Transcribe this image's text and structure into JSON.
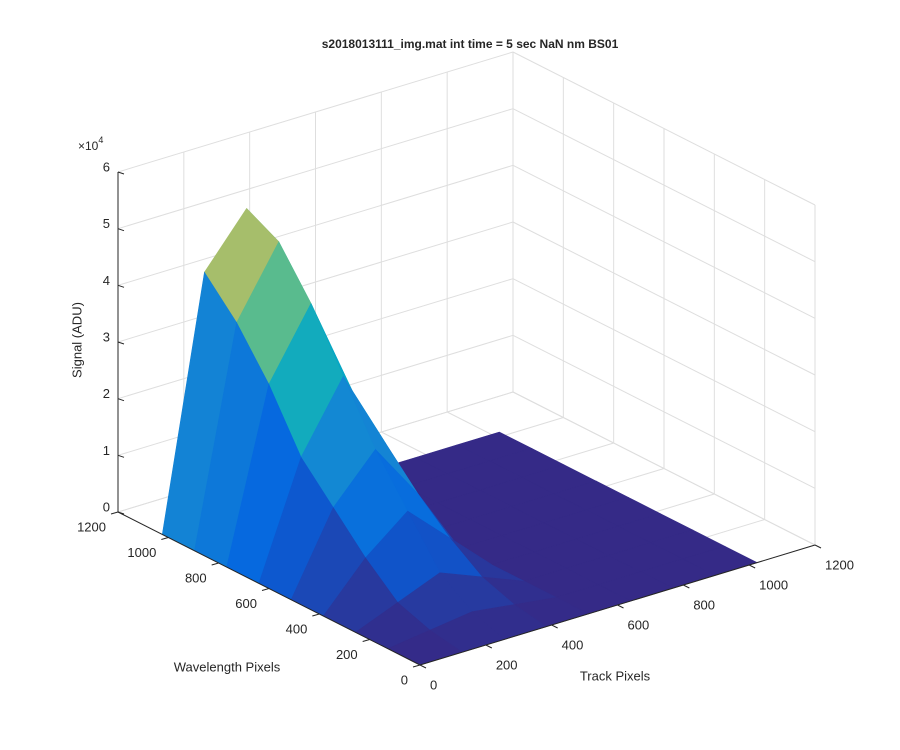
{
  "chart_data": {
    "type": "surface",
    "title": "s2018013111_img.mat int time = 5 sec  NaN nm BS01",
    "xlabel": "Track Pixels",
    "ylabel": "Wavelength Pixels",
    "zlabel": "Signal (ADU)",
    "z_multiplier": {
      "base": "×10",
      "exponent": "4"
    },
    "x": [
      0,
      128,
      256,
      384,
      512,
      640,
      768,
      896,
      1024
    ],
    "y": [
      0,
      128,
      256,
      384,
      512,
      640,
      768,
      896,
      1024
    ],
    "z": [
      [
        0,
        0,
        0,
        0,
        0,
        0,
        0,
        0,
        0
      ],
      [
        0,
        1000,
        2000,
        1000,
        0,
        0,
        0,
        0,
        0
      ],
      [
        0,
        3000,
        6000,
        3000,
        0,
        0,
        0,
        0,
        0
      ],
      [
        0,
        8000,
        14000,
        7000,
        0,
        0,
        0,
        0,
        0
      ],
      [
        0,
        14000,
        22000,
        12000,
        0,
        0,
        0,
        0,
        0
      ],
      [
        0,
        20000,
        32000,
        18000,
        0,
        0,
        0,
        0,
        0
      ],
      [
        0,
        30000,
        42000,
        24000,
        0,
        0,
        0,
        0,
        0
      ],
      [
        0,
        38000,
        50000,
        28000,
        0,
        0,
        0,
        0,
        0
      ],
      [
        0,
        44000,
        53000,
        30000,
        0,
        0,
        0,
        0,
        0
      ]
    ],
    "colormap": "parula",
    "xlim": [
      0,
      1200
    ],
    "xticks": [
      0,
      200,
      400,
      600,
      800,
      1000,
      1200
    ],
    "ylim": [
      0,
      1200
    ],
    "yticks": [
      0,
      200,
      400,
      600,
      800,
      1000,
      1200
    ],
    "zlim": [
      0,
      60000
    ],
    "zticks": [
      {
        "value": 0,
        "label": "0"
      },
      {
        "value": 10000,
        "label": "1"
      },
      {
        "value": 20000,
        "label": "2"
      },
      {
        "value": 30000,
        "label": "3"
      },
      {
        "value": 40000,
        "label": "4"
      },
      {
        "value": 50000,
        "label": "5"
      },
      {
        "value": 60000,
        "label": "6"
      }
    ],
    "grid": true
  }
}
